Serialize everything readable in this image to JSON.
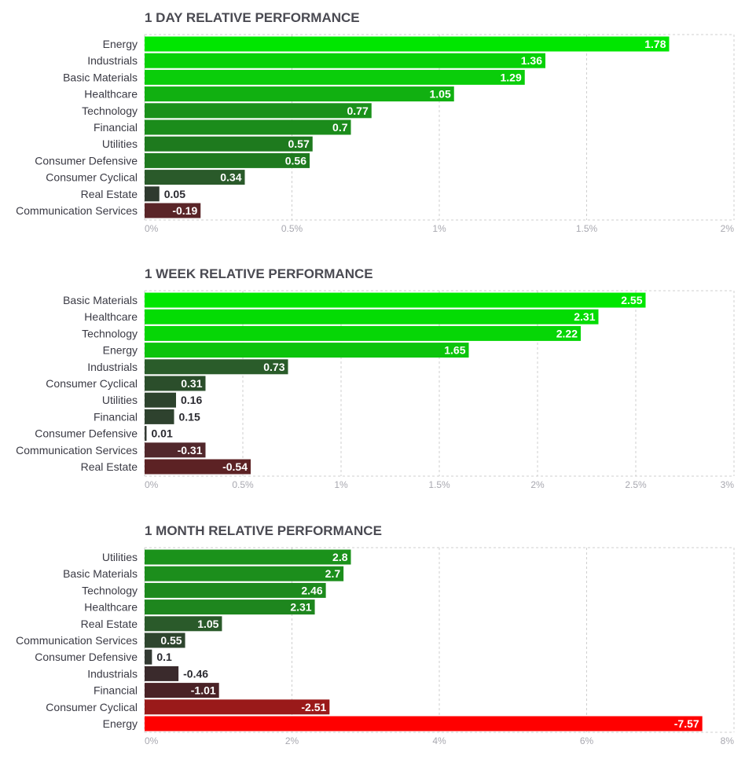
{
  "chart_data": [
    {
      "type": "bar",
      "orientation": "horizontal",
      "title": "1 DAY RELATIVE PERFORMANCE",
      "categories": [
        "Energy",
        "Industrials",
        "Basic Materials",
        "Healthcare",
        "Technology",
        "Financial",
        "Utilities",
        "Consumer Defensive",
        "Consumer Cyclical",
        "Real Estate",
        "Communication Services"
      ],
      "values": [
        1.78,
        1.36,
        1.29,
        1.05,
        0.77,
        0.7,
        0.57,
        0.56,
        0.34,
        0.05,
        -0.19
      ],
      "value_labels": [
        "1.78",
        "1.36",
        "1.29",
        "1.05",
        "0.77",
        "0.7",
        "0.57",
        "0.56",
        "0.34",
        "0.05",
        "-0.19"
      ],
      "colors": [
        "#00e600",
        "#07d107",
        "#0acd0a",
        "#11b011",
        "#1a911a",
        "#1b8c1b",
        "#1e7a1e",
        "#1f7a1f",
        "#2a5a2a",
        "#2f3a2f",
        "#5a2528"
      ],
      "xlim": [
        0,
        2
      ],
      "xticks": [
        0,
        0.5,
        1,
        1.5,
        2
      ],
      "xtick_labels": [
        "0%",
        "0.5%",
        "1%",
        "1.5%",
        "2%"
      ],
      "grid": true
    },
    {
      "type": "bar",
      "orientation": "horizontal",
      "title": "1 WEEK RELATIVE PERFORMANCE",
      "categories": [
        "Basic Materials",
        "Healthcare",
        "Technology",
        "Energy",
        "Industrials",
        "Consumer Cyclical",
        "Utilities",
        "Financial",
        "Consumer Defensive",
        "Communication Services",
        "Real Estate"
      ],
      "values": [
        2.55,
        2.31,
        2.22,
        1.65,
        0.73,
        0.31,
        0.16,
        0.15,
        0.01,
        -0.31,
        -0.54
      ],
      "value_labels": [
        "2.55",
        "2.31",
        "2.22",
        "1.65",
        "0.73",
        "0.31",
        "0.16",
        "0.15",
        "0.01",
        "-0.31",
        "-0.54"
      ],
      "colors": [
        "#00e600",
        "#04dc04",
        "#06d606",
        "#0cc40c",
        "#2a5c2a",
        "#2b4e2b",
        "#2d432d",
        "#2e422e",
        "#333a33",
        "#52282c",
        "#5c2224"
      ],
      "xlim": [
        0,
        3
      ],
      "xticks": [
        0,
        0.5,
        1,
        1.5,
        2,
        2.5,
        3
      ],
      "xtick_labels": [
        "0%",
        "0.5%",
        "1%",
        "1.5%",
        "2%",
        "2.5%",
        "3%"
      ],
      "grid": true
    },
    {
      "type": "bar",
      "orientation": "horizontal",
      "title": "1 MONTH RELATIVE PERFORMANCE",
      "categories": [
        "Utilities",
        "Basic Materials",
        "Technology",
        "Healthcare",
        "Real Estate",
        "Communication Services",
        "Consumer Defensive",
        "Industrials",
        "Financial",
        "Consumer Cyclical",
        "Energy"
      ],
      "values": [
        2.8,
        2.7,
        2.46,
        2.31,
        1.05,
        0.55,
        0.1,
        -0.46,
        -1.01,
        -2.51,
        -7.57
      ],
      "value_labels": [
        "2.8",
        "2.7",
        "2.46",
        "2.31",
        "1.05",
        "0.55",
        "0.1",
        "-0.46",
        "-1.01",
        "-2.51",
        "-7.57"
      ],
      "colors": [
        "#1b921b",
        "#1c8e1c",
        "#1d8a1d",
        "#1e861e",
        "#2a5a2a",
        "#2e452e",
        "#333a33",
        "#3a2a2c",
        "#4a2226",
        "#9a1a1a",
        "#ff0000"
      ],
      "xlim": [
        0,
        8
      ],
      "xticks": [
        0,
        2,
        4,
        6,
        8
      ],
      "xtick_labels": [
        "0%",
        "2%",
        "4%",
        "6%",
        "8%"
      ],
      "grid": true
    }
  ]
}
